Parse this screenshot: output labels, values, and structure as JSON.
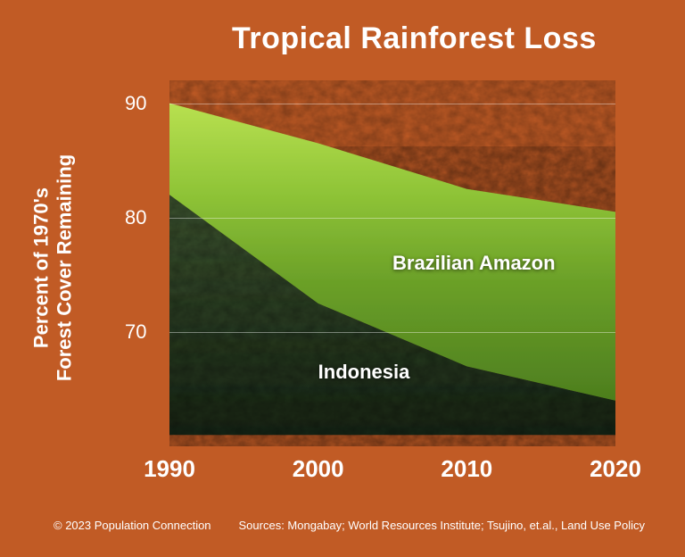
{
  "title": "Tropical Rainforest Loss",
  "ylabel_line1": "Percent of 1970's",
  "ylabel_line2": "Forest Cover Remaining",
  "credit": "© 2023 Population Connection",
  "sources": "Sources: Mongabay; World Resources Institute; Tsujino, et.al., Land Use Policy",
  "chart": {
    "type": "area",
    "background_color": "#c15b25",
    "grid_color": "rgba(255,255,255,0.4)",
    "title_fontsize": 34,
    "label_fontsize": 22,
    "xlim": [
      1990,
      2020
    ],
    "ylim": [
      60,
      92
    ],
    "yticks": [
      70,
      80,
      90
    ],
    "xticks": [
      1990,
      2000,
      2010,
      2020
    ],
    "series": [
      {
        "name": "Brazilian Amazon",
        "label": "Brazilian Amazon",
        "label_x": 2005,
        "label_y": 76,
        "fill_top": "#a8d942",
        "fill_bottom": "#5a8a1f",
        "x": [
          1990,
          2000,
          2010,
          2020
        ],
        "y": [
          90,
          86.5,
          82.5,
          80.5
        ],
        "baseline": [
          82,
          72.5,
          67,
          64
        ]
      },
      {
        "name": "Indonesia",
        "label": "Indonesia",
        "label_x": 2000,
        "label_y": 66.5,
        "fill_top": "#3d5a2f",
        "fill_bottom": "#1a2e18",
        "x": [
          1990,
          2000,
          2010,
          2020
        ],
        "y": [
          82,
          72.5,
          67,
          64
        ],
        "baseline": [
          61,
          61,
          61,
          61
        ]
      }
    ]
  }
}
